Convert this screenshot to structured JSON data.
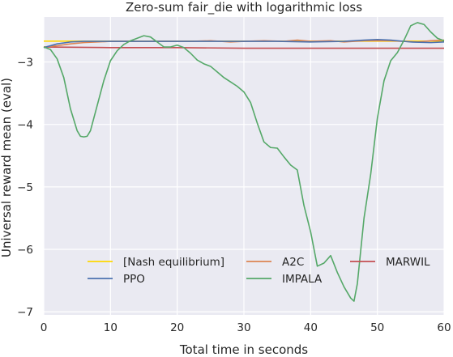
{
  "chart_data": {
    "type": "line",
    "title": "Zero-sum fair_die with logarithmic loss",
    "xlabel": "Total time in seconds",
    "ylabel": "Universal reward mean (eval)",
    "xlim": [
      0,
      60
    ],
    "ylim": [
      -7.05,
      -2.28
    ],
    "xticks": [
      0,
      10,
      20,
      30,
      40,
      50,
      60
    ],
    "yticks": [
      -7,
      -6,
      -5,
      -4,
      -3
    ],
    "grid": true,
    "background": "#eaeaf2",
    "legend_position": "lower-center",
    "series": [
      {
        "name": "[Nash equilibrium]",
        "color": "#ffd700",
        "x": [
          0,
          60
        ],
        "y": [
          -2.667,
          -2.667
        ]
      },
      {
        "name": "PPO",
        "color": "#4c72b0",
        "x": [
          0,
          2,
          4,
          6,
          10,
          15,
          20,
          25,
          30,
          35,
          40,
          45,
          48,
          50,
          52,
          55,
          58,
          60
        ],
        "y": [
          -2.77,
          -2.71,
          -2.68,
          -2.67,
          -2.67,
          -2.67,
          -2.67,
          -2.67,
          -2.67,
          -2.67,
          -2.68,
          -2.67,
          -2.65,
          -2.64,
          -2.65,
          -2.68,
          -2.69,
          -2.68
        ]
      },
      {
        "name": "A2C",
        "color": "#dd8452",
        "x": [
          0,
          2,
          4,
          6,
          8,
          10,
          14,
          18,
          20,
          22,
          25,
          28,
          30,
          33,
          36,
          38,
          40,
          43,
          45,
          48,
          50,
          52,
          54,
          56,
          58,
          60
        ],
        "y": [
          -2.76,
          -2.74,
          -2.71,
          -2.69,
          -2.68,
          -2.67,
          -2.67,
          -2.67,
          -2.67,
          -2.67,
          -2.66,
          -2.68,
          -2.67,
          -2.66,
          -2.67,
          -2.65,
          -2.67,
          -2.66,
          -2.68,
          -2.66,
          -2.66,
          -2.66,
          -2.67,
          -2.68,
          -2.66,
          -2.65
        ]
      },
      {
        "name": "MARWIL",
        "color": "#c44e52",
        "x": [
          0,
          10,
          20,
          30,
          40,
          50,
          60
        ],
        "y": [
          -2.76,
          -2.77,
          -2.77,
          -2.78,
          -2.78,
          -2.78,
          -2.78
        ]
      },
      {
        "name": "IMPALA",
        "color": "#55a868",
        "x": [
          0,
          1,
          2,
          3,
          4,
          5,
          5.5,
          6,
          6.5,
          7,
          8,
          9,
          10,
          11,
          12,
          13,
          14,
          15,
          16,
          17,
          18,
          19,
          20,
          21,
          22,
          23,
          24,
          25,
          26,
          27,
          28,
          29,
          30,
          31,
          32,
          33,
          34,
          35,
          36,
          37,
          38,
          39,
          40,
          41,
          42,
          43,
          44,
          45,
          46,
          46.5,
          47,
          48,
          49,
          50,
          51,
          52,
          53,
          54,
          55,
          56,
          57,
          58,
          59,
          60
        ],
        "y": [
          -2.76,
          -2.8,
          -2.95,
          -3.25,
          -3.75,
          -4.1,
          -4.19,
          -4.2,
          -4.19,
          -4.1,
          -3.7,
          -3.3,
          -2.98,
          -2.82,
          -2.72,
          -2.66,
          -2.62,
          -2.58,
          -2.6,
          -2.68,
          -2.76,
          -2.76,
          -2.73,
          -2.77,
          -2.86,
          -2.97,
          -3.03,
          -3.07,
          -3.16,
          -3.25,
          -3.32,
          -3.39,
          -3.48,
          -3.65,
          -3.98,
          -4.28,
          -4.37,
          -4.38,
          -4.52,
          -4.65,
          -4.73,
          -5.3,
          -5.72,
          -6.27,
          -6.22,
          -6.1,
          -6.37,
          -6.6,
          -6.78,
          -6.83,
          -6.55,
          -5.5,
          -4.8,
          -3.9,
          -3.3,
          -2.98,
          -2.85,
          -2.65,
          -2.42,
          -2.37,
          -2.4,
          -2.52,
          -2.62,
          -2.66
        ]
      }
    ]
  }
}
